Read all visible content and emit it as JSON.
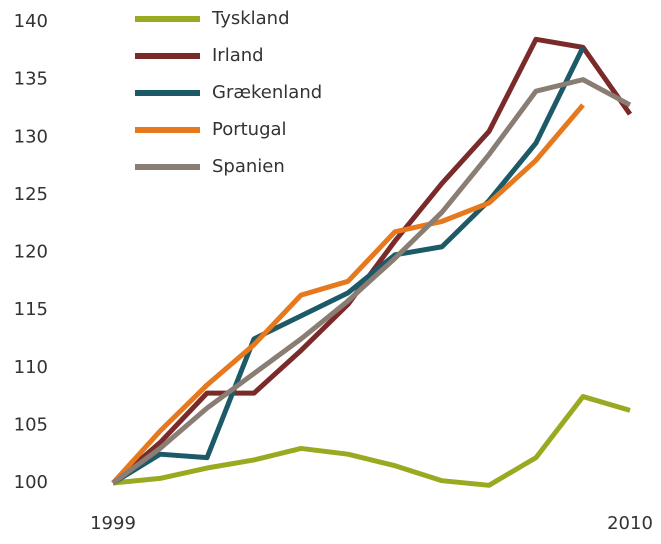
{
  "chart_data": {
    "type": "line",
    "categories": [
      "1999",
      null,
      null,
      null,
      null,
      null,
      null,
      null,
      null,
      null,
      null,
      "2010"
    ],
    "ylim": [
      100,
      140
    ],
    "yticks": [
      100,
      105,
      110,
      115,
      120,
      125,
      130,
      135,
      140
    ],
    "grid": false,
    "legend": "upper-left",
    "series": [
      {
        "name": "Tyskland",
        "color": "#9aaa20",
        "values": [
          100,
          100.4,
          101.3,
          102,
          103,
          102.5,
          101.5,
          100.2,
          99.8,
          102.2,
          107.5,
          106.3
        ]
      },
      {
        "name": "Irland",
        "color": "#7b2a2a",
        "values": [
          100,
          103.5,
          107.8,
          107.8,
          111.5,
          115.5,
          121,
          126,
          130.5,
          138.5,
          137.8,
          132
        ]
      },
      {
        "name": "Grækenland",
        "color": "#1c5a68",
        "values": [
          100,
          102.5,
          102.2,
          112.5,
          114.5,
          116.5,
          119.8,
          120.5,
          124.5,
          129.5,
          137.8,
          null
        ]
      },
      {
        "name": "Portugal",
        "color": "#e6781e",
        "values": [
          100,
          104.5,
          108.5,
          112,
          116.3,
          117.5,
          121.8,
          122.7,
          124.3,
          128,
          132.8,
          null
        ]
      },
      {
        "name": "Spanien",
        "color": "#8a7d74",
        "values": [
          100,
          103,
          106.5,
          109.5,
          112.5,
          115.8,
          119.5,
          123.5,
          128.5,
          134,
          135,
          132.8
        ]
      }
    ]
  }
}
